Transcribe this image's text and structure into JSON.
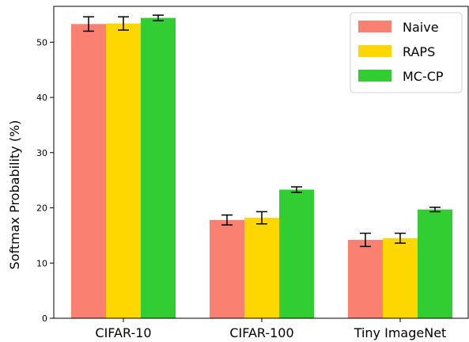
{
  "chart_data": {
    "type": "bar",
    "title": "",
    "xlabel": "",
    "ylabel": "Softmax Probability (%)",
    "ylim": [
      0,
      56.5
    ],
    "yticks": [
      0,
      10,
      20,
      30,
      40,
      50
    ],
    "categories": [
      "CIFAR-10",
      "CIFAR-100",
      "Tiny ImageNet"
    ],
    "series": [
      {
        "name": "Naive",
        "color": "#fa8072",
        "values": [
          53.3,
          17.8,
          14.2
        ],
        "errors": [
          1.3,
          0.9,
          1.2
        ]
      },
      {
        "name": "RAPS",
        "color": "#ffd700",
        "values": [
          53.4,
          18.2,
          14.5
        ],
        "errors": [
          1.2,
          1.1,
          0.9
        ]
      },
      {
        "name": "MC-CP",
        "color": "#32cd32",
        "values": [
          54.4,
          23.3,
          19.7
        ],
        "errors": [
          0.5,
          0.5,
          0.4
        ]
      }
    ],
    "legend_position": "top-right",
    "grid": false
  }
}
